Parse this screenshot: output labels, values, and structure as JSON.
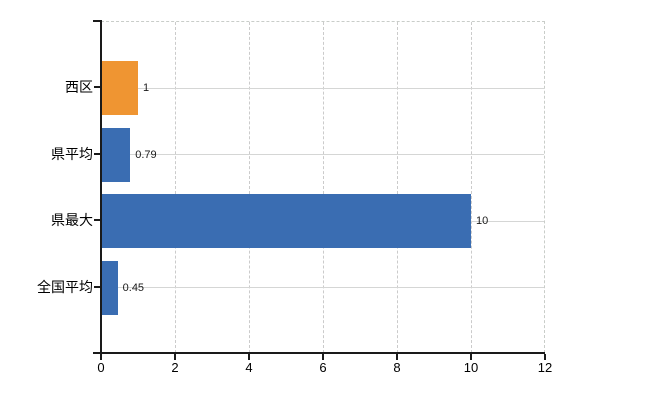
{
  "chart_data": {
    "type": "bar",
    "orientation": "horizontal",
    "title": "",
    "xlabel": "",
    "ylabel": "",
    "categories": [
      "西区",
      "県平均",
      "県最大",
      "全国平均"
    ],
    "values": [
      1,
      0.79,
      10,
      0.45
    ],
    "value_labels": [
      "1",
      "0.79",
      "10",
      "0.45"
    ],
    "bar_colors": [
      "#ef9532",
      "#3a6db2",
      "#3a6db2",
      "#3a6db2"
    ],
    "xlim": [
      0,
      12
    ],
    "xticks": [
      0,
      2,
      4,
      6,
      8,
      10,
      12
    ],
    "xtick_labels": [
      "0",
      "2",
      "4",
      "6",
      "8",
      "10",
      "12"
    ],
    "grid": {
      "vertical_style": "dashed",
      "horizontal_style": "solid",
      "vertical_color": "#cbcbcb",
      "horizontal_color": "#d5d6d5"
    },
    "legend": "none",
    "colors": {
      "highlight_orange": "#ef9532",
      "series_blue": "#3a6db2",
      "axis": "#1a1a1a",
      "background": "#ffffff"
    }
  }
}
